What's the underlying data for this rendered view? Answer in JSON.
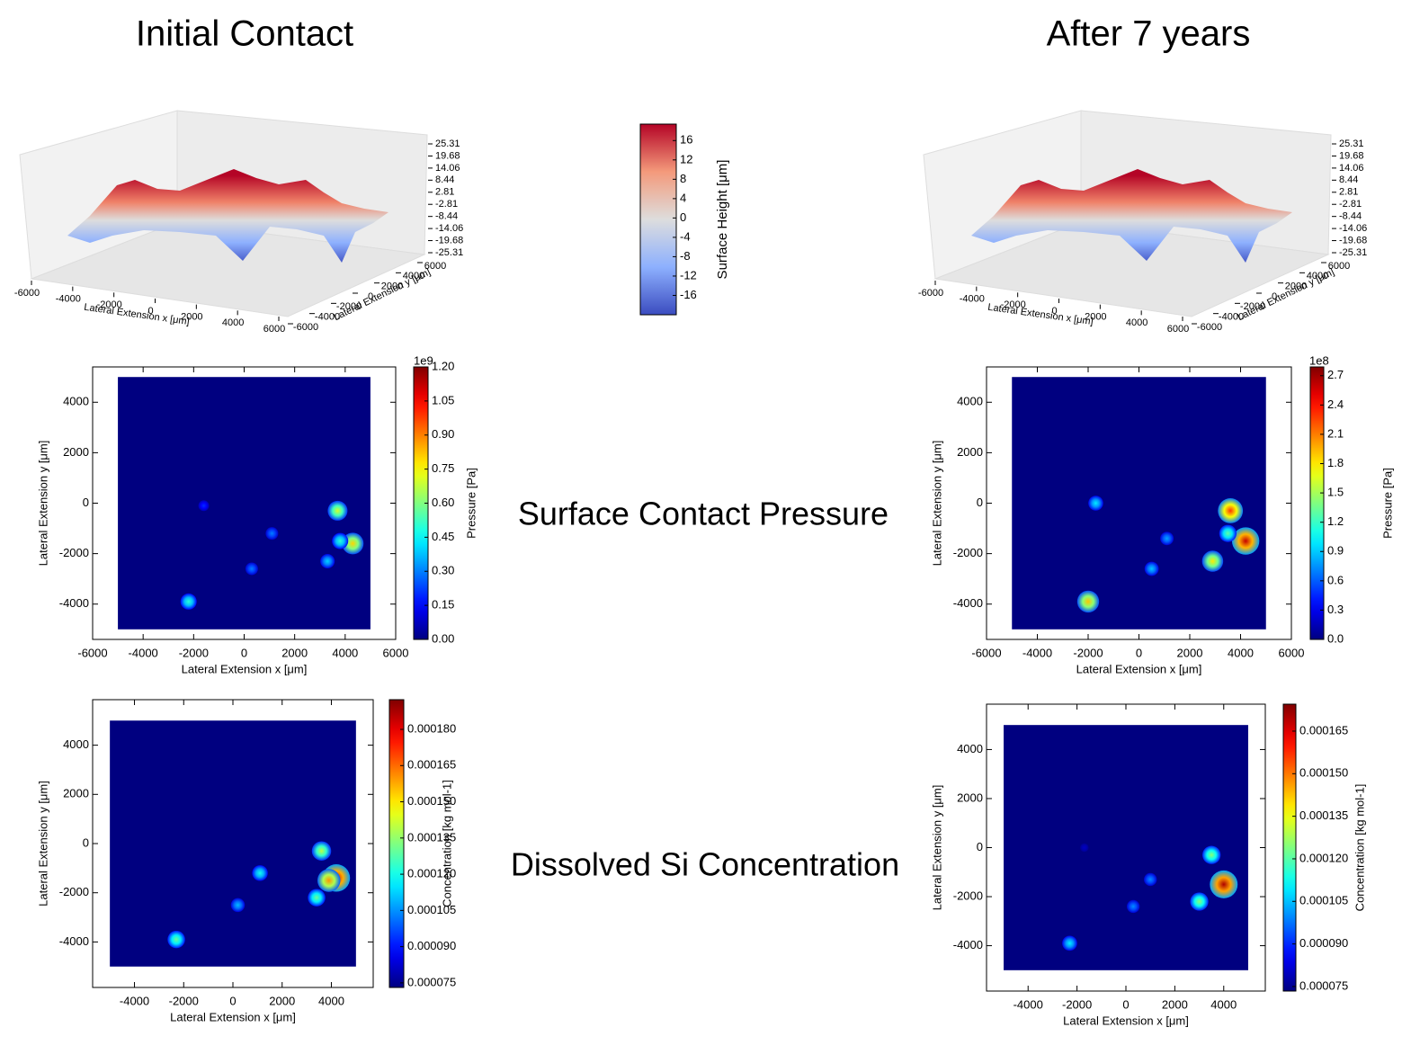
{
  "chart_data": [
    {
      "type": "surface3d",
      "title": "Initial Contact",
      "xlabel": "Lateral Extension x [μm]",
      "ylabel": "Lateral Extension y [μm]",
      "xlim": [
        -6000,
        6000
      ],
      "xticks": [
        -6000,
        -4000,
        -2000,
        0,
        2000,
        4000,
        6000
      ],
      "ylim": [
        -6000,
        6000
      ],
      "yticks": [
        -6000,
        -4000,
        -2000,
        0,
        2000,
        4000,
        6000
      ],
      "zlim": [
        -25.31,
        25.31
      ],
      "zticks": [
        -25.31,
        -19.68,
        -14.06,
        -8.44,
        -2.81,
        2.81,
        8.44,
        14.06,
        19.68,
        25.31
      ],
      "colormap": "coolwarm"
    },
    {
      "type": "surface3d",
      "title": "After 7 years",
      "xlabel": "Lateral Extension x [μm]",
      "ylabel": "Lateral Extension y [μm]",
      "xlim": [
        -6000,
        6000
      ],
      "xticks": [
        -6000,
        -4000,
        -2000,
        0,
        2000,
        4000,
        6000
      ],
      "ylim": [
        -6000,
        6000
      ],
      "yticks": [
        -6000,
        -4000,
        -2000,
        0,
        2000,
        4000,
        6000
      ],
      "zlim": [
        -25.31,
        25.31
      ],
      "zticks": [
        -25.31,
        -19.68,
        -14.06,
        -8.44,
        -2.81,
        2.81,
        8.44,
        14.06,
        19.68,
        25.31
      ],
      "colormap": "coolwarm"
    },
    {
      "type": "colorbar",
      "label": "Surface Height [μm]",
      "clim": [
        -20,
        19.4
      ],
      "ticks": [
        -16,
        -12,
        -8,
        -4,
        0,
        4,
        8,
        12,
        16
      ],
      "colormap": "coolwarm"
    },
    {
      "type": "heatmap",
      "title": "Surface Contact Pressure",
      "xlabel": "Lateral Extension x [μm]",
      "ylabel": "Lateral Extension y [μm]",
      "xlim": [
        -6000,
        6000
      ],
      "xticks": [
        -6000,
        -4000,
        -2000,
        0,
        2000,
        4000,
        6000
      ],
      "ylim": [
        -5400,
        5400
      ],
      "yticks": [
        -4000,
        -2000,
        0,
        2000,
        4000
      ],
      "extent": [
        -5000,
        5000,
        -5000,
        5000
      ],
      "points": {
        "x": [
          3700,
          4300,
          3800,
          3300,
          1100,
          300,
          -2200,
          -1600
        ],
        "y": [
          -300,
          -1600,
          -1500,
          -2300,
          -1200,
          -2600,
          -3900,
          -100
        ],
        "values": [
          0.7,
          0.8,
          0.5,
          0.4,
          0.3,
          0.3,
          0.5,
          0.2
        ]
      },
      "colorbar": {
        "label": "Pressure [Pa]",
        "offset_label": "1e9",
        "clim": [
          0,
          1.2
        ],
        "colormap": "jet",
        "ticks": [
          {
            "value": 0,
            "label": "0.00"
          },
          0.15,
          {
            "value": 0.3,
            "label": "0.30"
          },
          0.45,
          {
            "value": 0.6,
            "label": "0.60"
          },
          0.75,
          {
            "value": 0.9,
            "label": "0.90"
          },
          1.05,
          {
            "value": 1.2,
            "label": "1.20"
          }
        ]
      }
    },
    {
      "type": "heatmap",
      "xlabel": "Lateral Extension x [μm]",
      "ylabel": "Lateral Extension y [μm]",
      "xlim": [
        -6000,
        6000
      ],
      "xticks": [
        -6000,
        -4000,
        -2000,
        0,
        2000,
        4000,
        6000
      ],
      "ylim": [
        -5400,
        5400
      ],
      "yticks": [
        -4000,
        -2000,
        0,
        2000,
        4000
      ],
      "extent": [
        -5000,
        5000,
        -5000,
        5000
      ],
      "points": {
        "x": [
          4200,
          3600,
          2900,
          -2000,
          -1700,
          500,
          1100,
          3500
        ],
        "y": [
          -1500,
          -300,
          -2300,
          -3900,
          0,
          -2600,
          -1400,
          -1200
        ],
        "values": [
          2.6,
          2.3,
          1.8,
          1.9,
          1.0,
          0.9,
          0.8,
          1.3
        ]
      },
      "colorbar": {
        "label": "Pressure [Pa]",
        "offset_label": "1e8",
        "clim": [
          0,
          2.79
        ],
        "colormap": "jet",
        "ticks": [
          {
            "value": 0,
            "label": "0.0"
          },
          0.3,
          0.6,
          0.9,
          1.2,
          1.5,
          1.8,
          2.1,
          2.4,
          2.7
        ]
      }
    },
    {
      "type": "heatmap",
      "title": "Dissolved Si Concentration",
      "xlabel": "Lateral Extension x [μm]",
      "ylabel": "Lateral Extension y [μm]",
      "xlim": [
        -5700,
        5700
      ],
      "xticks": [
        -4000,
        -2000,
        0,
        2000,
        4000
      ],
      "ylim": [
        -5850,
        5850
      ],
      "yticks": [
        -4000,
        -2000,
        0,
        2000,
        4000
      ],
      "extent": [
        -5000,
        5000,
        -5000,
        5000
      ],
      "points": {
        "x": [
          4200,
          3900,
          3600,
          3400,
          1100,
          200,
          -2300
        ],
        "y": [
          -1400,
          -1500,
          -300,
          -2200,
          -1200,
          -2500,
          -3900
        ],
        "values": [
          0.000185,
          0.00016,
          0.00014,
          0.00013,
          0.00012,
          0.00011,
          0.00013
        ]
      },
      "colorbar": {
        "label": "Concentration [kg mol-1]",
        "clim": [
          7.31e-05,
          0.0001923
        ],
        "colormap": "jet",
        "ticks": [
          7.5e-05,
          {
            "value": 9e-05,
            "label": "0.000090"
          },
          0.000105,
          {
            "value": 0.00012,
            "label": "0.000120"
          },
          0.000135,
          {
            "value": 0.00015,
            "label": "0.000150"
          },
          0.000165,
          {
            "value": 0.00018,
            "label": "0.000180"
          }
        ]
      }
    },
    {
      "type": "heatmap",
      "xlabel": "Lateral Extension x [μm]",
      "ylabel": "Lateral Extension y [μm]",
      "xlim": [
        -5700,
        5700
      ],
      "xticks": [
        -4000,
        -2000,
        0,
        2000,
        4000
      ],
      "ylim": [
        -5850,
        5850
      ],
      "yticks": [
        -4000,
        -2000,
        0,
        2000,
        4000
      ],
      "extent": [
        -5000,
        5000,
        -5000,
        5000
      ],
      "points": {
        "x": [
          4000,
          3500,
          3000,
          -2300,
          1000,
          300,
          -1700
        ],
        "y": [
          -1500,
          -300,
          -2200,
          -3900,
          -1300,
          -2400,
          0
        ],
        "values": [
          0.00017,
          0.000125,
          0.000125,
          0.00011,
          0.0001,
          0.0001,
          8e-05
        ]
      },
      "colorbar": {
        "label": "Concentration [kg mol-1]",
        "clim": [
          7.34e-05,
          0.0001745
        ],
        "colormap": "jet",
        "ticks": [
          7.5e-05,
          {
            "value": 9e-05,
            "label": "0.000090"
          },
          0.000105,
          {
            "value": 0.00012,
            "label": "0.000120"
          },
          0.000135,
          {
            "value": 0.00015,
            "label": "0.000150"
          },
          0.000165
        ]
      }
    }
  ]
}
